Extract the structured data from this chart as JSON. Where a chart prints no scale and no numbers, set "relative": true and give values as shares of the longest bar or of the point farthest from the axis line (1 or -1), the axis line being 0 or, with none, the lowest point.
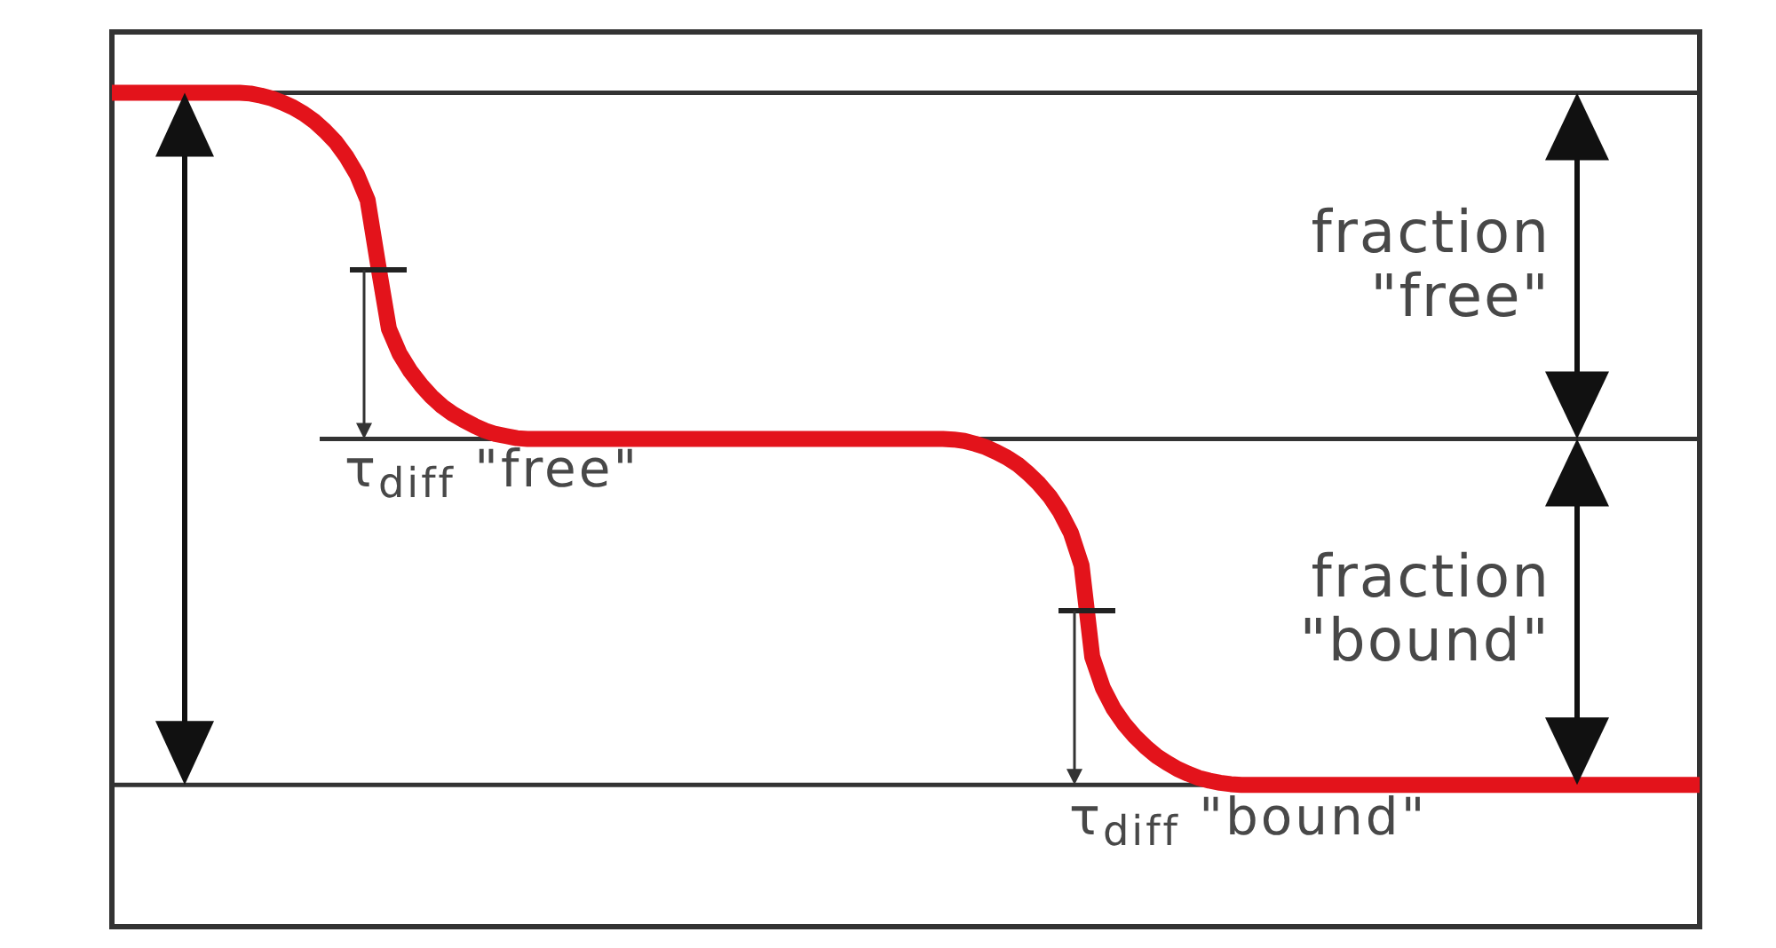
{
  "chart_data": {
    "type": "line",
    "relative": true,
    "marker": "none",
    "color": "#e3131b",
    "categories": [
      null,
      null,
      null,
      null,
      null,
      null,
      null,
      null,
      null,
      null,
      null,
      null,
      null,
      null,
      null,
      null,
      null,
      null,
      null,
      null,
      null,
      null,
      null,
      null,
      null,
      null,
      null,
      null,
      null,
      null,
      null,
      null,
      null,
      null,
      null,
      null,
      null,
      null,
      null,
      null,
      null,
      null,
      null,
      null,
      null,
      null,
      null,
      null,
      null,
      null,
      null,
      null,
      null,
      null,
      null,
      null,
      null,
      null,
      null,
      null,
      null,
      null,
      null,
      null,
      null,
      null,
      null,
      null,
      null,
      null,
      null,
      null,
      null,
      null,
      null,
      null,
      null,
      null,
      null,
      null,
      null,
      null,
      null,
      null,
      null,
      null,
      null,
      null,
      null,
      null,
      null,
      null,
      null,
      null,
      null,
      null,
      null,
      null,
      null,
      null,
      null,
      null,
      null,
      null,
      null,
      null,
      null,
      null,
      null,
      null,
      null,
      null,
      null,
      null,
      null,
      null,
      null,
      null,
      null,
      null,
      null,
      null,
      null,
      null,
      null,
      null,
      null,
      null,
      null,
      null,
      null,
      null,
      null,
      null,
      null,
      null,
      null,
      null,
      null,
      null,
      null,
      null,
      null,
      null,
      null,
      null,
      null,
      null,
      null,
      null
    ],
    "values": [
      1,
      1,
      1,
      1,
      1,
      1,
      1,
      1,
      1,
      1,
      1,
      1,
      1,
      0.999,
      0.996,
      0.992,
      0.986,
      0.979,
      0.97,
      0.959,
      0.945,
      0.929,
      0.908,
      0.882,
      0.845,
      0.75,
      0.659,
      0.623,
      0.598,
      0.578,
      0.561,
      0.547,
      0.536,
      0.527,
      0.519,
      0.512,
      0.507,
      0.504,
      0.501,
      0.5,
      0.5,
      0.5,
      0.5,
      0.5,
      0.5,
      0.5,
      0.5,
      0.5,
      0.5,
      0.5,
      0.5,
      0.5,
      0.5,
      0.5,
      0.5,
      0.5,
      0.5,
      0.5,
      0.5,
      0.5,
      0.5,
      0.5,
      0.5,
      0.5,
      0.5,
      0.5,
      0.5,
      0.5,
      0.5,
      0.5,
      0.5,
      0.5,
      0.5,
      0.5,
      0.5,
      0.5,
      0.5,
      0.5,
      0.5,
      0.499,
      0.497,
      0.493,
      0.488,
      0.481,
      0.473,
      0.463,
      0.45,
      0.435,
      0.417,
      0.394,
      0.364,
      0.317,
      0.185,
      0.14,
      0.11,
      0.088,
      0.07,
      0.055,
      0.042,
      0.032,
      0.023,
      0.016,
      0.01,
      0.006,
      0.003,
      0.001,
      0,
      0,
      0,
      0,
      0,
      0,
      0,
      0,
      0,
      0,
      0,
      0,
      0,
      0,
      0,
      0,
      0,
      0,
      0,
      0,
      0,
      0,
      0,
      0,
      0,
      0,
      0,
      0,
      0,
      0,
      0,
      0,
      0,
      0,
      0,
      0,
      0,
      0,
      0,
      0,
      0,
      0,
      0,
      0
    ],
    "ref_lines": [
      {
        "axis": "y",
        "value": 1,
        "color": "#333333"
      },
      {
        "axis": "y",
        "value": 0.5,
        "color": "#333333"
      },
      {
        "axis": "y",
        "value": 0,
        "color": "#333333"
      }
    ],
    "annotations": [
      "fraction \"free\"",
      "τ$_{diff}$ \"free\"",
      "fraction \"bound\"",
      "τ$_{diff}$ \"bound\""
    ]
  }
}
